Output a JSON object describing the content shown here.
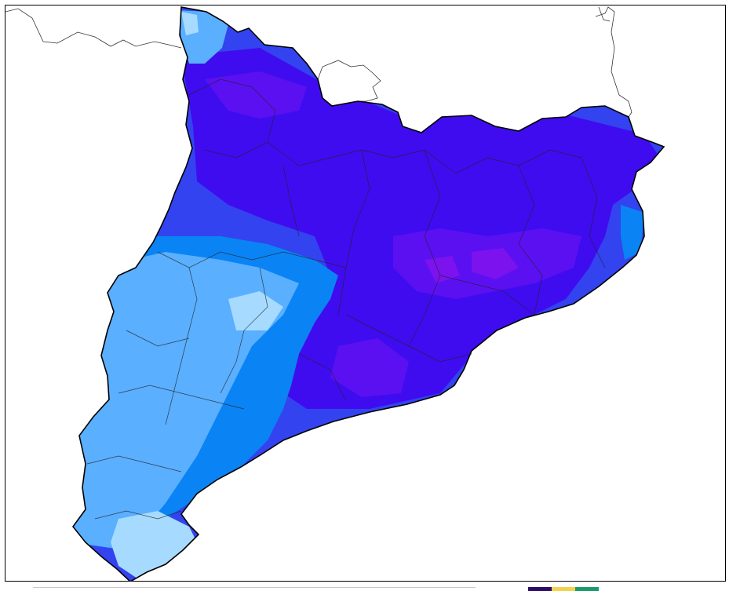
{
  "map": {
    "region": "Catalonia",
    "bands": [
      {
        "name": "band-lightest",
        "color": "#a6dbff"
      },
      {
        "name": "band-light",
        "color": "#5aafff"
      },
      {
        "name": "band-medium",
        "color": "#0a84f4"
      },
      {
        "name": "band-strong",
        "color": "#3343ef"
      },
      {
        "name": "band-deep",
        "color": "#3f0cf0"
      },
      {
        "name": "band-violet",
        "color": "#5b10f2"
      },
      {
        "name": "band-purple",
        "color": "#7c12ee"
      }
    ],
    "legend_colors": [
      "#2b0b67",
      "#f0d24c",
      "#1a9a6a"
    ]
  }
}
